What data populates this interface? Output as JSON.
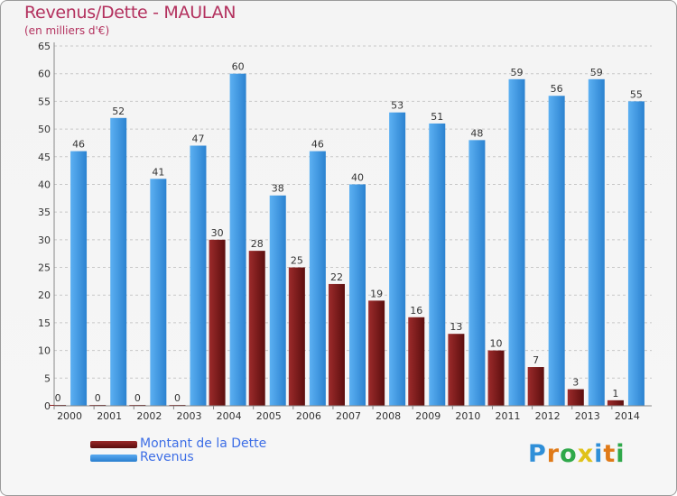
{
  "header": {
    "title": "Revenus/Dette - MAULAN",
    "subtitle": "(en milliers d'€)"
  },
  "chart_data": {
    "type": "bar",
    "title": "Revenus/Dette - MAULAN",
    "subtitle": "(en milliers d'€)",
    "categories": [
      "2000",
      "2001",
      "2002",
      "2003",
      "2004",
      "2005",
      "2006",
      "2007",
      "2008",
      "2009",
      "2010",
      "2011",
      "2012",
      "2013",
      "2014"
    ],
    "series": [
      {
        "name": "Montant de la Dette",
        "color": "#7a1a1a",
        "values": [
          0,
          0,
          0,
          0,
          30,
          28,
          25,
          22,
          19,
          16,
          13,
          10,
          7,
          3,
          1
        ]
      },
      {
        "name": "Revenus",
        "color": "#3a94df",
        "values": [
          46,
          52,
          41,
          47,
          60,
          38,
          46,
          40,
          53,
          51,
          48,
          59,
          56,
          59,
          55
        ]
      }
    ],
    "ylim": [
      0,
      65
    ],
    "yticks": [
      0,
      5,
      10,
      15,
      20,
      25,
      30,
      35,
      40,
      45,
      50,
      55,
      60,
      65
    ],
    "grid": true,
    "legend": "bottom-left"
  },
  "legend": {
    "items": [
      {
        "label": "Montant de la Dette",
        "color": "#7a1a1a"
      },
      {
        "label": "Revenus",
        "color": "#3a94df"
      }
    ]
  },
  "logo": {
    "letters": [
      "P",
      "r",
      "o",
      "x",
      "i",
      "t",
      "i"
    ],
    "colors": [
      "#2f8fd8",
      "#e07a18",
      "#2fa84a",
      "#e0c21a",
      "#2f8fd8",
      "#e07a18",
      "#2fa84a"
    ]
  }
}
